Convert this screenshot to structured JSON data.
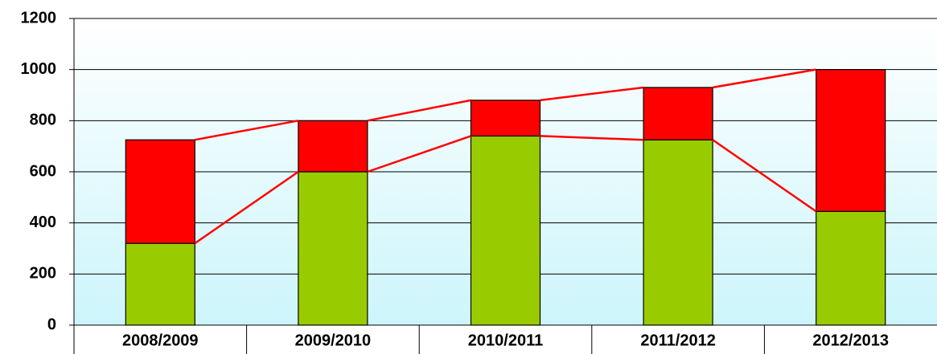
{
  "chart_data": {
    "type": "stacked_bar",
    "categories": [
      "2008/2009",
      "2009/2010",
      "2010/2011",
      "2011/2012",
      "2012/2013"
    ],
    "series": [
      {
        "color": "#99cc00",
        "values": [
          320,
          600,
          740,
          725,
          445
        ]
      },
      {
        "color": "#ff0000",
        "values": [
          405,
          200,
          140,
          205,
          555
        ]
      }
    ],
    "series_lines": true,
    "series_line_color": "#ff0000",
    "ylim": [
      0,
      1200
    ],
    "yticks": [
      0,
      200,
      400,
      600,
      800,
      1000,
      1200
    ],
    "grid": true
  }
}
